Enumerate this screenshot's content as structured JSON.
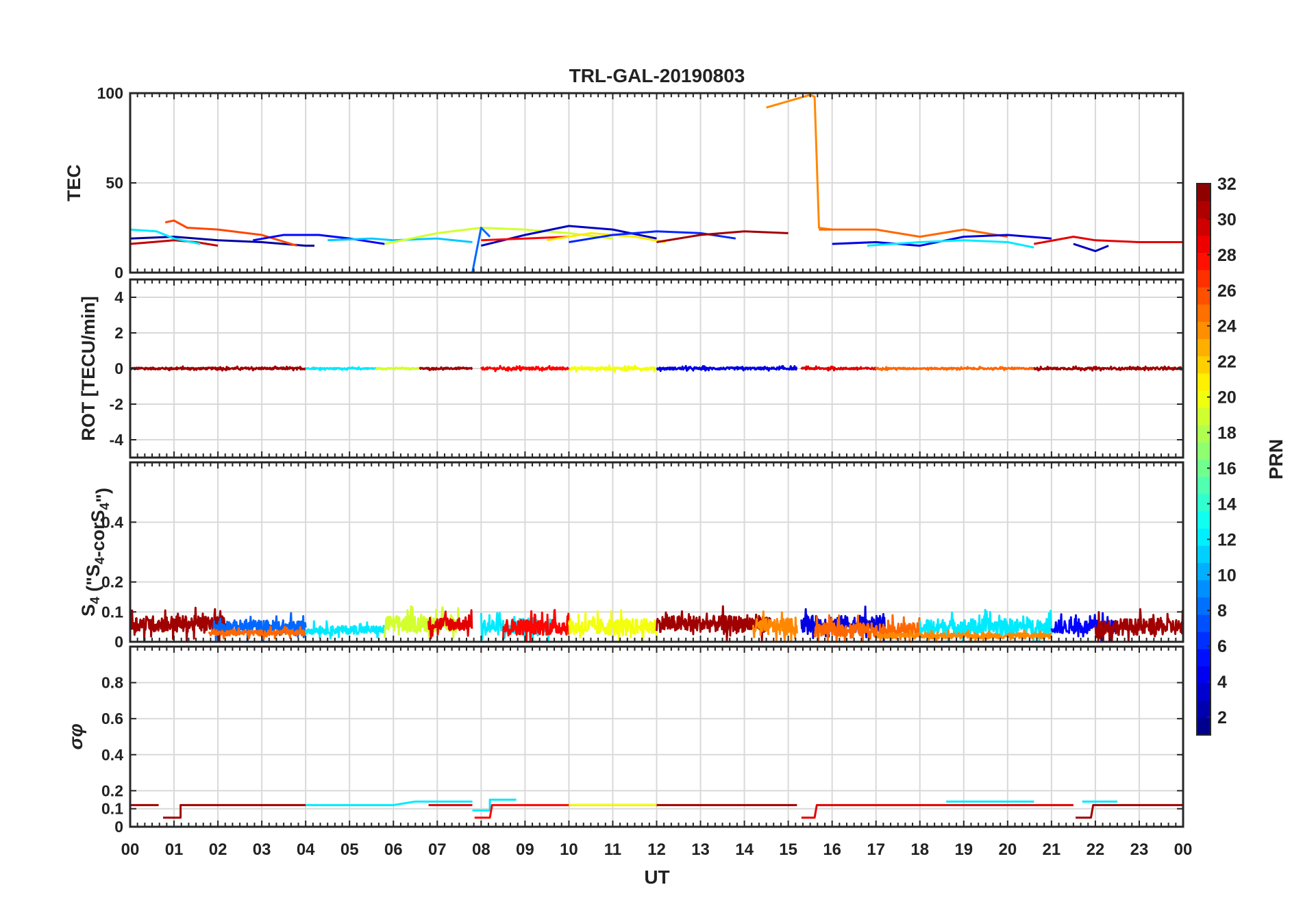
{
  "chart_data": {
    "type": "line",
    "title": "TRL-GAL-20190803",
    "xlabel": "UT",
    "x_tick_labels": [
      "00",
      "01",
      "02",
      "03",
      "04",
      "05",
      "06",
      "07",
      "08",
      "09",
      "10",
      "11",
      "12",
      "13",
      "14",
      "15",
      "16",
      "17",
      "18",
      "19",
      "20",
      "21",
      "22",
      "23",
      "00"
    ],
    "xlim_hours": [
      0,
      24
    ],
    "grid": true,
    "colorbar": {
      "label": "PRN",
      "colormap": "jet",
      "range": [
        1,
        32
      ],
      "ticks": [
        "2",
        "4",
        "6",
        "8",
        "10",
        "12",
        "14",
        "16",
        "18",
        "20",
        "22",
        "24",
        "26",
        "28",
        "30",
        "32"
      ]
    },
    "panels": [
      {
        "id": "tec",
        "ylabel": "TEC",
        "ylim": [
          0,
          100
        ],
        "y_ticks": [
          0,
          50,
          100
        ],
        "y_tick_labels": [
          "0",
          "50",
          "100"
        ],
        "series": [
          {
            "prn": 2,
            "x": [
              0.0,
              1.0,
              2.0,
              3.0,
              4.0,
              4.2
            ],
            "y": [
              19,
              20,
              18,
              17,
              15,
              15
            ]
          },
          {
            "prn": 30,
            "x": [
              0.0,
              0.5,
              1.0,
              1.5,
              2.0
            ],
            "y": [
              16,
              17,
              18,
              17,
              15
            ]
          },
          {
            "prn": 26,
            "x": [
              0.8,
              1.0,
              1.3,
              2.0,
              3.0,
              3.8
            ],
            "y": [
              28,
              29,
              25,
              24,
              21,
              15
            ]
          },
          {
            "prn": 12,
            "x": [
              0.0,
              0.6,
              1.0,
              1.6
            ],
            "y": [
              24,
              23,
              19,
              16
            ]
          },
          {
            "prn": 5,
            "x": [
              2.8,
              3.5,
              4.3,
              5.0,
              5.8
            ],
            "y": [
              18,
              21,
              21,
              19,
              16
            ]
          },
          {
            "prn": 11,
            "x": [
              4.5,
              5.5,
              6.0,
              7.0,
              7.8
            ],
            "y": [
              18,
              19,
              18,
              19,
              17
            ]
          },
          {
            "prn": 19,
            "x": [
              5.8,
              7.0,
              8.0,
              9.0,
              10.0,
              11.0
            ],
            "y": [
              16,
              22,
              25,
              24,
              22,
              19
            ]
          },
          {
            "prn": 8,
            "x": [
              7.8,
              8.0,
              8.2
            ],
            "y": [
              0,
              25,
              20
            ]
          },
          {
            "prn": 3,
            "x": [
              8.0,
              9.0,
              10.0,
              11.0,
              12.0
            ],
            "y": [
              15,
              21,
              26,
              24,
              19
            ]
          },
          {
            "prn": 28,
            "x": [
              8.0,
              9.0,
              10.0
            ],
            "y": [
              18,
              19,
              20
            ]
          },
          {
            "prn": 21,
            "x": [
              9.5,
              10.5,
              11.5,
              12.2
            ],
            "y": [
              18,
              22,
              20,
              17
            ]
          },
          {
            "prn": 6,
            "x": [
              10.0,
              11.0,
              12.0,
              13.0,
              13.8
            ],
            "y": [
              17,
              21,
              23,
              22,
              19
            ]
          },
          {
            "prn": 31,
            "x": [
              12.0,
              13.0,
              14.0,
              15.0
            ],
            "y": [
              17,
              21,
              23,
              22
            ]
          },
          {
            "prn": 24,
            "x": [
              14.5,
              15.5,
              15.6,
              15.7,
              16.0
            ],
            "y": [
              92,
              99,
              98,
              25,
              24
            ]
          },
          {
            "prn": 25,
            "x": [
              15.7,
              17.0,
              18.0,
              19.0,
              20.0
            ],
            "y": [
              24,
              24,
              20,
              24,
              20
            ]
          },
          {
            "prn": 4,
            "x": [
              16.0,
              17.0,
              18.0,
              19.0,
              20.0,
              21.0
            ],
            "y": [
              16,
              17,
              15,
              20,
              21,
              19
            ]
          },
          {
            "prn": 12,
            "x": [
              16.8,
              18.0,
              19.0,
              20.0,
              20.6
            ],
            "y": [
              15,
              17,
              18,
              17,
              14
            ]
          },
          {
            "prn": 29,
            "x": [
              20.6,
              21.5,
              22.0,
              23.0,
              24.0
            ],
            "y": [
              16,
              20,
              18,
              17,
              17
            ]
          },
          {
            "prn": 3,
            "x": [
              21.5,
              22.0,
              22.3
            ],
            "y": [
              16,
              12,
              15
            ]
          }
        ]
      },
      {
        "id": "rot",
        "ylabel": "ROT [TECU/min]",
        "ylim": [
          -5,
          5
        ],
        "y_ticks": [
          -4,
          -2,
          0,
          2,
          4
        ],
        "y_tick_labels": [
          "-4",
          "-2",
          "0",
          "2",
          "4"
        ],
        "series": [
          {
            "prn": 31,
            "x_range": [
              0.0,
              4.0
            ],
            "mean": 0.0,
            "amp": 0.12
          },
          {
            "prn": 12,
            "x_range": [
              4.0,
              5.6
            ],
            "mean": 0.0,
            "amp": 0.08
          },
          {
            "prn": 19,
            "x_range": [
              5.6,
              6.6
            ],
            "mean": 0.0,
            "amp": 0.08
          },
          {
            "prn": 31,
            "x_range": [
              6.6,
              7.8
            ],
            "mean": 0.0,
            "amp": 0.1
          },
          {
            "prn": 28,
            "x_range": [
              8.0,
              10.0
            ],
            "mean": 0.0,
            "amp": 0.15
          },
          {
            "prn": 20,
            "x_range": [
              10.0,
              12.0
            ],
            "mean": 0.0,
            "amp": 0.18
          },
          {
            "prn": 4,
            "x_range": [
              12.0,
              15.2
            ],
            "mean": 0.0,
            "amp": 0.14
          },
          {
            "prn": 29,
            "x_range": [
              15.3,
              17.0
            ],
            "mean": 0.0,
            "amp": 0.12
          },
          {
            "prn": 25,
            "x_range": [
              17.0,
              20.6
            ],
            "mean": 0.0,
            "amp": 0.1
          },
          {
            "prn": 31,
            "x_range": [
              20.6,
              24.0
            ],
            "mean": 0.0,
            "amp": 0.12
          }
        ]
      },
      {
        "id": "s4",
        "ylabel": "S4 (\"S4-corS4\")",
        "ylim": [
          0,
          0.6
        ],
        "y_ticks": [
          0,
          0.1,
          0.2,
          0.4
        ],
        "y_tick_labels": [
          "0",
          "0.1",
          "0.2",
          "0.4"
        ],
        "series": [
          {
            "prn": 31,
            "x_range": [
              0.0,
              2.2
            ],
            "mean": 0.06,
            "amp": 0.06
          },
          {
            "prn": 8,
            "x_range": [
              1.9,
              4.0
            ],
            "mean": 0.05,
            "amp": 0.05
          },
          {
            "prn": 25,
            "x_range": [
              1.8,
              4.0
            ],
            "mean": 0.03,
            "amp": 0.02
          },
          {
            "prn": 12,
            "x_range": [
              4.0,
              5.8
            ],
            "mean": 0.04,
            "amp": 0.03
          },
          {
            "prn": 19,
            "x_range": [
              5.8,
              7.5
            ],
            "mean": 0.06,
            "amp": 0.06
          },
          {
            "prn": 29,
            "x_range": [
              6.8,
              7.8
            ],
            "mean": 0.06,
            "amp": 0.05
          },
          {
            "prn": 12,
            "x_range": [
              8.0,
              9.6
            ],
            "mean": 0.05,
            "amp": 0.06
          },
          {
            "prn": 28,
            "x_range": [
              8.5,
              10.0
            ],
            "mean": 0.05,
            "amp": 0.06
          },
          {
            "prn": 20,
            "x_range": [
              10.0,
              12.0
            ],
            "mean": 0.05,
            "amp": 0.06
          },
          {
            "prn": 31,
            "x_range": [
              12.0,
              14.6
            ],
            "mean": 0.06,
            "amp": 0.06
          },
          {
            "prn": 24,
            "x_range": [
              14.2,
              15.2
            ],
            "mean": 0.05,
            "amp": 0.06
          },
          {
            "prn": 4,
            "x_range": [
              15.3,
              17.2
            ],
            "mean": 0.06,
            "amp": 0.06
          },
          {
            "prn": 25,
            "x_range": [
              15.6,
              18.0
            ],
            "mean": 0.04,
            "amp": 0.05
          },
          {
            "prn": 12,
            "x_range": [
              18.0,
              21.0
            ],
            "mean": 0.05,
            "amp": 0.06
          },
          {
            "prn": 24,
            "x_range": [
              17.0,
              21.0
            ],
            "mean": 0.02,
            "amp": 0.02
          },
          {
            "prn": 5,
            "x_range": [
              21.0,
              22.5
            ],
            "mean": 0.05,
            "amp": 0.05
          },
          {
            "prn": 31,
            "x_range": [
              22.0,
              24.0
            ],
            "mean": 0.05,
            "amp": 0.06
          }
        ]
      },
      {
        "id": "sigma_phi",
        "ylabel": "σφ",
        "ylim": [
          0,
          1
        ],
        "y_ticks": [
          0,
          0.1,
          0.2,
          0.4,
          0.6,
          0.8
        ],
        "y_tick_labels": [
          "0",
          "0.1",
          "0.2",
          "0.4",
          "0.6",
          "0.8"
        ],
        "series": [
          {
            "prn": 31,
            "x": [
              0.0,
              0.65
            ],
            "y": [
              0.12,
              0.12
            ]
          },
          {
            "prn": 31,
            "x": [
              0.75,
              1.15,
              1.15,
              4.0
            ],
            "y": [
              0.05,
              0.05,
              0.12,
              0.12
            ]
          },
          {
            "prn": 12,
            "x": [
              4.0,
              6.0,
              6.5,
              7.8
            ],
            "y": [
              0.12,
              0.12,
              0.14,
              0.14
            ]
          },
          {
            "prn": 29,
            "x": [
              6.8,
              7.8
            ],
            "y": [
              0.12,
              0.12
            ]
          },
          {
            "prn": 12,
            "x": [
              7.8,
              8.2,
              8.2,
              8.8
            ],
            "y": [
              0.09,
              0.09,
              0.15,
              0.15
            ]
          },
          {
            "prn": 28,
            "x": [
              7.85,
              8.2,
              8.25,
              12.0
            ],
            "y": [
              0.05,
              0.05,
              0.12,
              0.12
            ]
          },
          {
            "prn": 20,
            "x": [
              10.0,
              12.0
            ],
            "y": [
              0.12,
              0.12
            ]
          },
          {
            "prn": 31,
            "x": [
              12.0,
              15.2
            ],
            "y": [
              0.12,
              0.12
            ]
          },
          {
            "prn": 29,
            "x": [
              15.3,
              15.6,
              15.65,
              21.5
            ],
            "y": [
              0.05,
              0.05,
              0.12,
              0.12
            ]
          },
          {
            "prn": 12,
            "x": [
              18.6,
              20.6
            ],
            "y": [
              0.14,
              0.14
            ]
          },
          {
            "prn": 12,
            "x": [
              21.7,
              22.5
            ],
            "y": [
              0.14,
              0.14
            ]
          },
          {
            "prn": 31,
            "x": [
              21.55,
              21.9,
              21.95,
              24.0
            ],
            "y": [
              0.05,
              0.05,
              0.12,
              0.12
            ]
          }
        ]
      }
    ]
  }
}
